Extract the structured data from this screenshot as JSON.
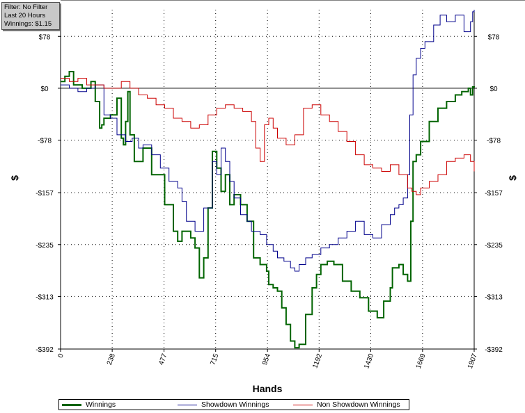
{
  "filter": {
    "line1": "Filter: No Filter",
    "line2": "Last  20 Hours",
    "line3": "Winnings: $1.15"
  },
  "chart_data": {
    "type": "line",
    "xlabel": "Hands",
    "ylabel": "$",
    "xlim": [
      0,
      1907
    ],
    "ylim": [
      -392,
      118
    ],
    "x_ticks": [
      0,
      238,
      477,
      715,
      954,
      1192,
      1430,
      1669,
      1907
    ],
    "y_ticks": [
      78,
      0,
      -78,
      -157,
      -235,
      -313,
      -392
    ],
    "y_tick_labels": [
      "$78",
      "$0",
      "-$78",
      "-$157",
      "-$235",
      "-$313",
      "-$392"
    ],
    "grid": true,
    "legend_position": "bottom",
    "series": [
      {
        "name": "Winnings",
        "color": "#006400",
        "x": [
          0,
          20,
          40,
          60,
          100,
          140,
          160,
          180,
          190,
          200,
          230,
          260,
          280,
          290,
          300,
          310,
          320,
          340,
          380,
          420,
          480,
          520,
          540,
          560,
          600,
          620,
          640,
          660,
          680,
          700,
          720,
          740,
          760,
          780,
          800,
          830,
          860,
          890,
          920,
          950,
          960,
          980,
          1000,
          1020,
          1040,
          1060,
          1080,
          1100,
          1130,
          1160,
          1180,
          1200,
          1230,
          1260,
          1300,
          1340,
          1380,
          1420,
          1460,
          1490,
          1520,
          1530,
          1560,
          1580,
          1600,
          1615,
          1625,
          1640,
          1660,
          1700,
          1740,
          1780,
          1820,
          1850,
          1880,
          1890,
          1900,
          1907
        ],
        "values": [
          10,
          18,
          25,
          5,
          0,
          10,
          -20,
          -60,
          -55,
          -45,
          -40,
          -15,
          -75,
          -85,
          -50,
          -5,
          -70,
          -110,
          -90,
          -130,
          -175,
          -215,
          -230,
          -215,
          -225,
          -240,
          -285,
          -255,
          -180,
          -95,
          -120,
          -155,
          -130,
          -175,
          -160,
          -175,
          -200,
          -255,
          -265,
          -275,
          -295,
          -300,
          -305,
          -330,
          -355,
          -380,
          -390,
          -385,
          -340,
          -300,
          -280,
          -265,
          -260,
          -265,
          -290,
          -305,
          -315,
          -335,
          -345,
          -320,
          -300,
          -270,
          -265,
          -280,
          -290,
          -200,
          -110,
          -100,
          -80,
          -50,
          -30,
          -20,
          -10,
          -5,
          0,
          -10,
          2,
          1.15
        ]
      },
      {
        "name": "Showdown Winnings",
        "color": "#00008b",
        "x": [
          0,
          40,
          80,
          120,
          160,
          200,
          230,
          260,
          300,
          330,
          360,
          380,
          420,
          460,
          500,
          540,
          560,
          580,
          620,
          660,
          700,
          720,
          740,
          760,
          780,
          800,
          830,
          860,
          880,
          920,
          950,
          980,
          1000,
          1030,
          1060,
          1080,
          1100,
          1130,
          1160,
          1200,
          1240,
          1280,
          1320,
          1360,
          1400,
          1440,
          1480,
          1520,
          1540,
          1560,
          1580,
          1600,
          1610,
          1625,
          1640,
          1660,
          1680,
          1720,
          1750,
          1780,
          1820,
          1860,
          1890,
          1900,
          1907
        ],
        "values": [
          5,
          0,
          -5,
          0,
          5,
          -40,
          -45,
          -70,
          -80,
          -75,
          -90,
          -85,
          -100,
          -120,
          -140,
          -150,
          -170,
          -200,
          -215,
          -180,
          -110,
          -130,
          -90,
          -110,
          -140,
          -165,
          -190,
          -200,
          -215,
          -220,
          -235,
          -245,
          -255,
          -260,
          -270,
          -275,
          -265,
          -255,
          -250,
          -240,
          -235,
          -225,
          -215,
          -200,
          -220,
          -225,
          -205,
          -190,
          -180,
          -175,
          -165,
          -130,
          -40,
          20,
          45,
          60,
          70,
          95,
          110,
          100,
          110,
          85,
          100,
          115,
          118
        ]
      },
      {
        "name": "Non Showdown Winnings",
        "color": "#cc0000",
        "x": [
          0,
          40,
          80,
          120,
          160,
          200,
          240,
          280,
          320,
          360,
          400,
          440,
          480,
          520,
          560,
          600,
          640,
          680,
          720,
          760,
          800,
          840,
          880,
          900,
          920,
          940,
          960,
          980,
          1000,
          1040,
          1080,
          1120,
          1160,
          1200,
          1240,
          1280,
          1320,
          1360,
          1400,
          1440,
          1480,
          1520,
          1560,
          1600,
          1620,
          1640,
          1660,
          1700,
          1740,
          1780,
          1820,
          1860,
          1890,
          1907
        ],
        "values": [
          15,
          10,
          15,
          5,
          5,
          0,
          0,
          10,
          0,
          -10,
          -15,
          -25,
          -30,
          -45,
          -50,
          -60,
          -55,
          -40,
          -30,
          -25,
          -30,
          -35,
          -50,
          -90,
          -110,
          -55,
          -45,
          -60,
          -75,
          -85,
          -70,
          -30,
          -25,
          -40,
          -50,
          -65,
          -80,
          -100,
          -115,
          -120,
          -125,
          -115,
          -130,
          -150,
          -155,
          -160,
          -150,
          -140,
          -130,
          -110,
          -105,
          -100,
          -110,
          -125
        ]
      }
    ]
  }
}
